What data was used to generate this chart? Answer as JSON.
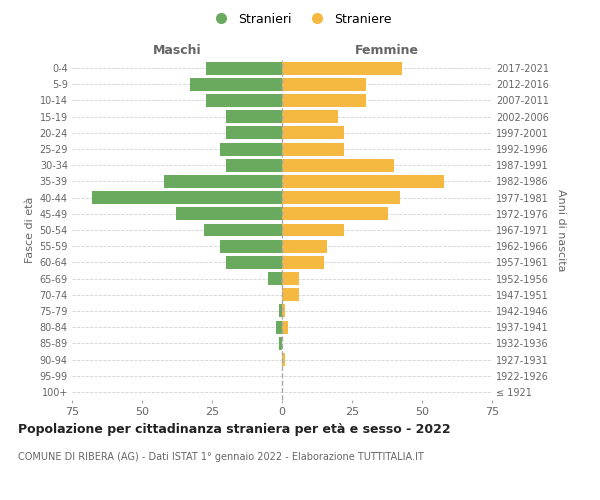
{
  "age_groups": [
    "100+",
    "95-99",
    "90-94",
    "85-89",
    "80-84",
    "75-79",
    "70-74",
    "65-69",
    "60-64",
    "55-59",
    "50-54",
    "45-49",
    "40-44",
    "35-39",
    "30-34",
    "25-29",
    "20-24",
    "15-19",
    "10-14",
    "5-9",
    "0-4"
  ],
  "birth_years": [
    "≤ 1921",
    "1922-1926",
    "1927-1931",
    "1932-1936",
    "1937-1941",
    "1942-1946",
    "1947-1951",
    "1952-1956",
    "1957-1961",
    "1962-1966",
    "1967-1971",
    "1972-1976",
    "1977-1981",
    "1982-1986",
    "1987-1991",
    "1992-1996",
    "1997-2001",
    "2002-2006",
    "2007-2011",
    "2012-2016",
    "2017-2021"
  ],
  "maschi": [
    0,
    0,
    0,
    1,
    2,
    1,
    0,
    5,
    20,
    22,
    28,
    38,
    68,
    42,
    20,
    22,
    20,
    20,
    27,
    33,
    27
  ],
  "femmine": [
    0,
    0,
    1,
    0,
    2,
    1,
    6,
    6,
    15,
    16,
    22,
    38,
    42,
    58,
    40,
    22,
    22,
    20,
    30,
    30,
    43
  ],
  "maschi_color": "#6aaa5e",
  "femmine_color": "#f5b942",
  "background_color": "#ffffff",
  "grid_color": "#cccccc",
  "title": "Popolazione per cittadinanza straniera per età e sesso - 2022",
  "subtitle": "COMUNE DI RIBERA (AG) - Dati ISTAT 1° gennaio 2022 - Elaborazione TUTTITALIA.IT",
  "xlabel_left": "Maschi",
  "xlabel_right": "Femmine",
  "ylabel_left": "Fasce di età",
  "ylabel_right": "Anni di nascita",
  "legend_maschi": "Stranieri",
  "legend_femmine": "Straniere",
  "xlim": 75
}
